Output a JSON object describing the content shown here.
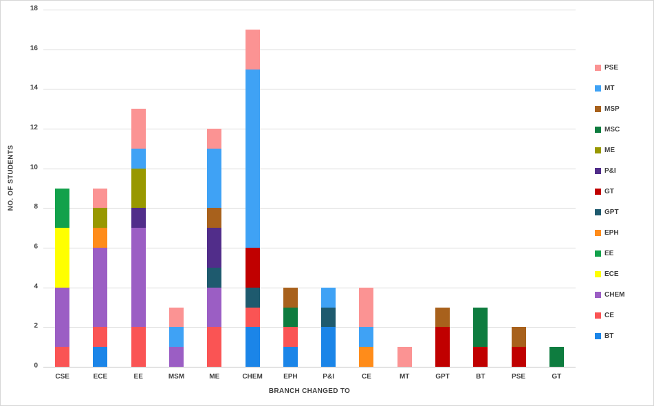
{
  "chart_data": {
    "type": "bar",
    "stacked": true,
    "title": "",
    "xlabel": "BRANCH CHANGED TO",
    "ylabel": "NO. OF STUDENTS",
    "ylim": [
      0,
      18
    ],
    "ytick_step": 2,
    "grid": true,
    "legend_position": "right",
    "categories": [
      "CSE",
      "ECE",
      "EE",
      "MSM",
      "ME",
      "CHEM",
      "EPH",
      "P&I",
      "CE",
      "MT",
      "GPT",
      "BT",
      "PSE",
      "GT"
    ],
    "series": [
      {
        "name": "BT",
        "color": "#1b85e8",
        "values": [
          0,
          1,
          0,
          0,
          0,
          2,
          1,
          2,
          0,
          0,
          0,
          0,
          0,
          0
        ]
      },
      {
        "name": "CE",
        "color": "#fa5454",
        "values": [
          1,
          1,
          2,
          0,
          2,
          1,
          1,
          0,
          0,
          0,
          0,
          0,
          0,
          0
        ]
      },
      {
        "name": "CHEM",
        "color": "#9b5ec4",
        "values": [
          3,
          4,
          5,
          1,
          2,
          0,
          0,
          0,
          0,
          0,
          0,
          0,
          0,
          0
        ]
      },
      {
        "name": "ECE",
        "color": "#ffff00",
        "values": [
          3,
          0,
          0,
          0,
          0,
          0,
          0,
          0,
          0,
          0,
          0,
          0,
          0,
          0
        ]
      },
      {
        "name": "EE",
        "color": "#12a14b",
        "values": [
          2,
          0,
          0,
          0,
          0,
          0,
          0,
          0,
          0,
          0,
          0,
          0,
          0,
          0
        ]
      },
      {
        "name": "EPH",
        "color": "#ff8c1a",
        "values": [
          0,
          1,
          0,
          0,
          0,
          0,
          0,
          0,
          1,
          0,
          0,
          0,
          0,
          0
        ]
      },
      {
        "name": "GPT",
        "color": "#1e5a6e",
        "values": [
          0,
          0,
          0,
          0,
          1,
          1,
          0,
          1,
          0,
          0,
          0,
          0,
          0,
          0
        ]
      },
      {
        "name": "GT",
        "color": "#c00000",
        "values": [
          0,
          0,
          0,
          0,
          0,
          2,
          0,
          0,
          0,
          0,
          2,
          1,
          1,
          0
        ]
      },
      {
        "name": "P&I",
        "color": "#512d8a",
        "values": [
          0,
          0,
          1,
          0,
          2,
          0,
          0,
          0,
          0,
          0,
          0,
          0,
          0,
          0
        ]
      },
      {
        "name": "ME",
        "color": "#989800",
        "values": [
          0,
          1,
          2,
          0,
          0,
          0,
          0,
          0,
          0,
          0,
          0,
          0,
          0,
          0
        ]
      },
      {
        "name": "MSC",
        "color": "#0e7c3f",
        "values": [
          0,
          0,
          0,
          0,
          0,
          0,
          1,
          0,
          0,
          0,
          0,
          2,
          0,
          1
        ]
      },
      {
        "name": "MSP",
        "color": "#a8611c",
        "values": [
          0,
          0,
          0,
          0,
          1,
          0,
          1,
          0,
          0,
          0,
          1,
          0,
          1,
          0
        ]
      },
      {
        "name": "MT",
        "color": "#3fa2f5",
        "values": [
          0,
          0,
          1,
          1,
          3,
          9,
          0,
          1,
          1,
          0,
          0,
          0,
          0,
          0
        ]
      },
      {
        "name": "PSE",
        "color": "#fb9393",
        "values": [
          0,
          1,
          2,
          1,
          1,
          2,
          0,
          0,
          2,
          1,
          0,
          0,
          0,
          0
        ]
      }
    ],
    "legend_order": [
      "PSE",
      "MT",
      "MSP",
      "MSC",
      "ME",
      "P&I",
      "GT",
      "GPT",
      "EPH",
      "EE",
      "ECE",
      "CHEM",
      "CE",
      "BT"
    ],
    "ytick_labels": [
      "0",
      "2",
      "4",
      "6",
      "8",
      "10",
      "12",
      "14",
      "16",
      "18"
    ]
  }
}
